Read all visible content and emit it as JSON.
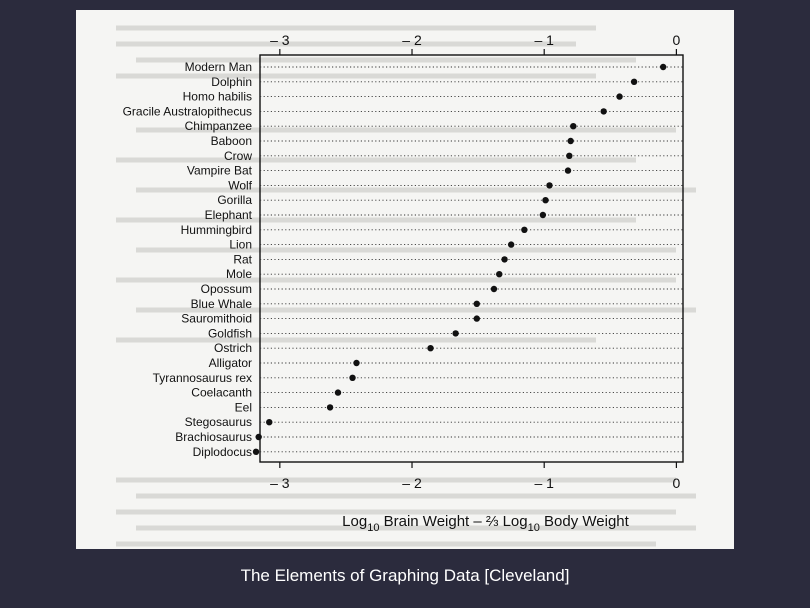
{
  "caption": "The Elements of Graphing Data [Cleveland]",
  "chart_data": {
    "type": "dot",
    "xlabel_parts": {
      "log1": "Log",
      "sub1": "10",
      "mid": " Brain Weight – ⅔ Log",
      "sub2": "10",
      "end": " Body Weight"
    },
    "xlim": [
      -3.15,
      0.05
    ],
    "xticks": [
      -3,
      -2,
      -1,
      0
    ],
    "xtick_labels": [
      "– 3",
      "– 2",
      "– 1",
      "0"
    ],
    "grid": "dotted horizontal guide lines per category",
    "categories": [
      "Modern Man",
      "Dolphin",
      "Homo habilis",
      "Gracile Australopithecus",
      "Chimpanzee",
      "Baboon",
      "Crow",
      "Vampire Bat",
      "Wolf",
      "Gorilla",
      "Elephant",
      "Hummingbird",
      "Lion",
      "Rat",
      "Mole",
      "Opossum",
      "Blue Whale",
      "Sauromithoid",
      "Goldfish",
      "Ostrich",
      "Alligator",
      "Tyrannosaurus rex",
      "Coelacanth",
      "Eel",
      "Stegosaurus",
      "Brachiosaurus",
      "Diplodocus"
    ],
    "values": [
      -0.1,
      -0.32,
      -0.43,
      -0.55,
      -0.78,
      -0.8,
      -0.81,
      -0.82,
      -0.96,
      -0.99,
      -1.01,
      -1.15,
      -1.25,
      -1.3,
      -1.34,
      -1.38,
      -1.51,
      -1.51,
      -1.67,
      -1.86,
      -2.42,
      -2.45,
      -2.56,
      -2.62,
      -3.08,
      -3.16,
      -3.18
    ],
    "point_color": "#111111"
  }
}
